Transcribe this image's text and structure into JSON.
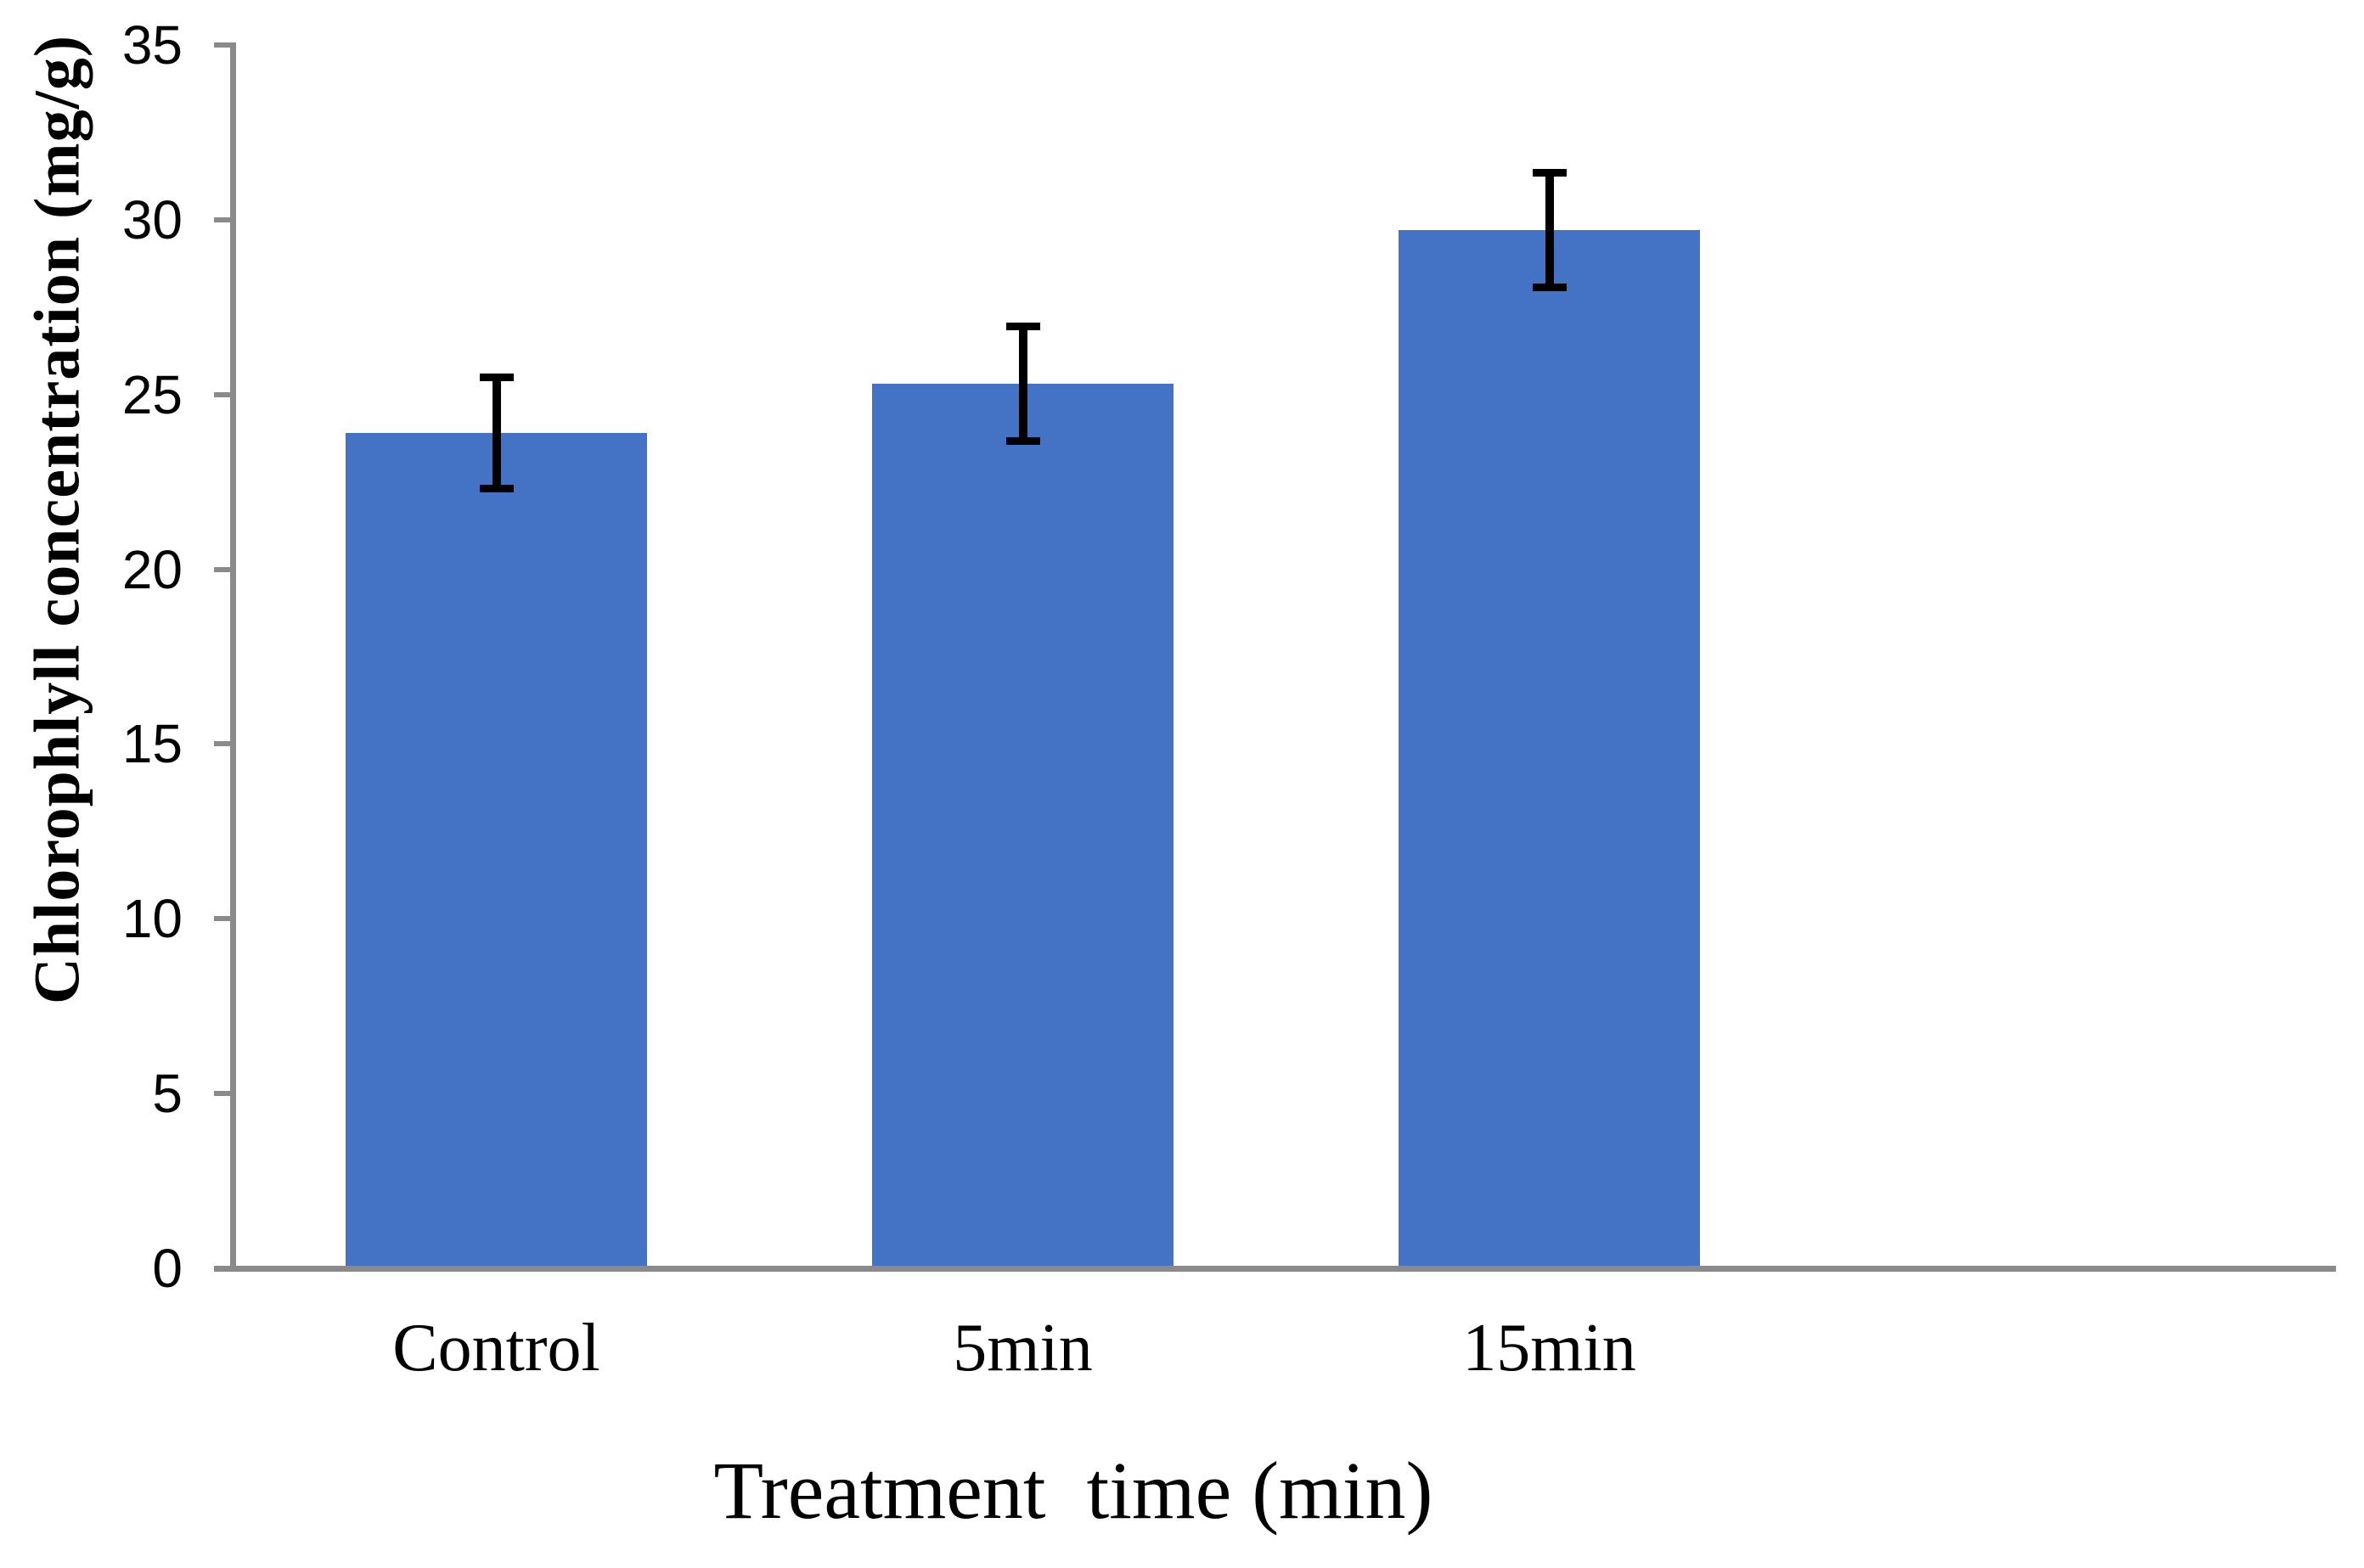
{
  "chart_data": {
    "type": "bar",
    "title": "",
    "categories": [
      "Control",
      "5min",
      "15min"
    ],
    "values": [
      23.9,
      25.3,
      29.7
    ],
    "error_bars": [
      1.7,
      1.75,
      1.75
    ],
    "xlabel": "Treatment  time (min)",
    "ylabel": "Chlorophlyll concentration (mg/g)",
    "ylim": [
      0,
      35
    ],
    "yticks": [
      0,
      5,
      10,
      15,
      20,
      25,
      30,
      35
    ],
    "grid": false,
    "legend": "none",
    "bar_color": "#4472C4",
    "axis_color": "#8A8A8A",
    "error_bar_color": "#000000",
    "background_color": "#FFFFFF"
  }
}
